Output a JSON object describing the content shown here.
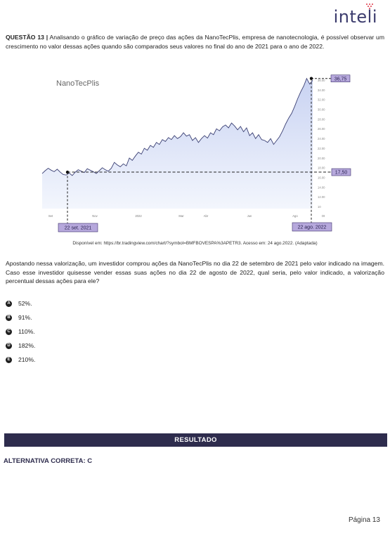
{
  "header": {
    "logo_text": "inteli",
    "accent": "#e0394b"
  },
  "question": {
    "number": "QUESTÃO 13 |",
    "text": "Analisando o gráfico de variação de preço das ações da NanoTecPlis, empresa de nanotecnologia, é possível observar um crescimento no valor dessas ações quando são comparados seus valores no final do ano de 2021 para o ano de 2022."
  },
  "chart_data": {
    "type": "area",
    "title": "NanoTecPlis",
    "x_tick_labels": [
      "Set",
      "Nov",
      "2022",
      "Mar",
      "Abr",
      "Jun",
      "Ago",
      "Ot"
    ],
    "y_tick_labels": [
      "36.00",
      "34.00",
      "32.00",
      "30.00",
      "28.00",
      "26.00",
      "24.00",
      "22.00",
      "20.00",
      "18.00",
      "16.00",
      "14.00",
      "12.00",
      "10"
    ],
    "ylim": [
      10,
      37
    ],
    "annotations": {
      "high_value": "36,75",
      "low_value": "17,50",
      "start_date": "22 set. 2021",
      "end_date": "22 ago. 2022"
    },
    "series": [
      {
        "values": [
          17.2,
          17.8,
          18.3,
          17.9,
          17.6,
          18.1,
          17.5,
          17.0,
          16.9,
          17.3,
          16.8,
          17.5,
          18.0,
          17.7,
          17.4,
          18.2,
          17.9,
          17.6,
          17.2,
          17.8,
          18.4,
          18.0,
          17.7,
          18.3,
          19.5,
          19.0,
          18.6,
          19.2,
          18.8,
          20.4,
          19.9,
          20.8,
          21.6,
          21.2,
          22.4,
          22.0,
          23.0,
          22.6,
          23.6,
          23.2,
          24.2,
          23.8,
          24.6,
          24.2,
          25.0,
          24.4,
          24.8,
          25.6,
          24.9,
          25.2,
          24.0,
          24.6,
          23.6,
          24.4,
          25.0,
          24.5,
          25.6,
          25.2,
          26.4,
          26.0,
          26.8,
          27.2,
          26.6,
          27.6,
          27.0,
          26.2,
          26.9,
          25.8,
          26.6,
          25.0,
          25.6,
          24.4,
          25.2,
          24.2,
          24.0,
          23.6,
          24.4,
          23.2,
          24.0,
          24.8,
          26.0,
          27.4,
          28.6,
          29.6,
          31.0,
          32.6,
          34.0,
          35.2,
          36.75,
          35.6,
          36.4
        ]
      }
    ]
  },
  "source_text": "Disponível em: https://br.tradingview.com/chart/?symbol=BMFBOVESPA%3APETR3. Acesso em: 24 ago.2022. (Adaptada)",
  "paragraph2": "Apostando nessa valorização, um investidor comprou ações da NanoTecPlis no dia 22 de setembro de 2021 pelo valor indicado na imagem. Caso esse investidor quisesse vender essas suas ações no dia 22 de agosto de 2022, qual seria, pelo valor indicado, a valorização percentual dessas ações para ele?",
  "options": [
    {
      "letter": "A",
      "text": "52%."
    },
    {
      "letter": "B",
      "text": "91%."
    },
    {
      "letter": "C",
      "text": "110%."
    },
    {
      "letter": "D",
      "text": "182%."
    },
    {
      "letter": "E",
      "text": "210%."
    }
  ],
  "result": {
    "label": "RESULTADO",
    "answer": "ALTERNATIVA CORRETA: C"
  },
  "footer": {
    "page": "Página 13"
  }
}
